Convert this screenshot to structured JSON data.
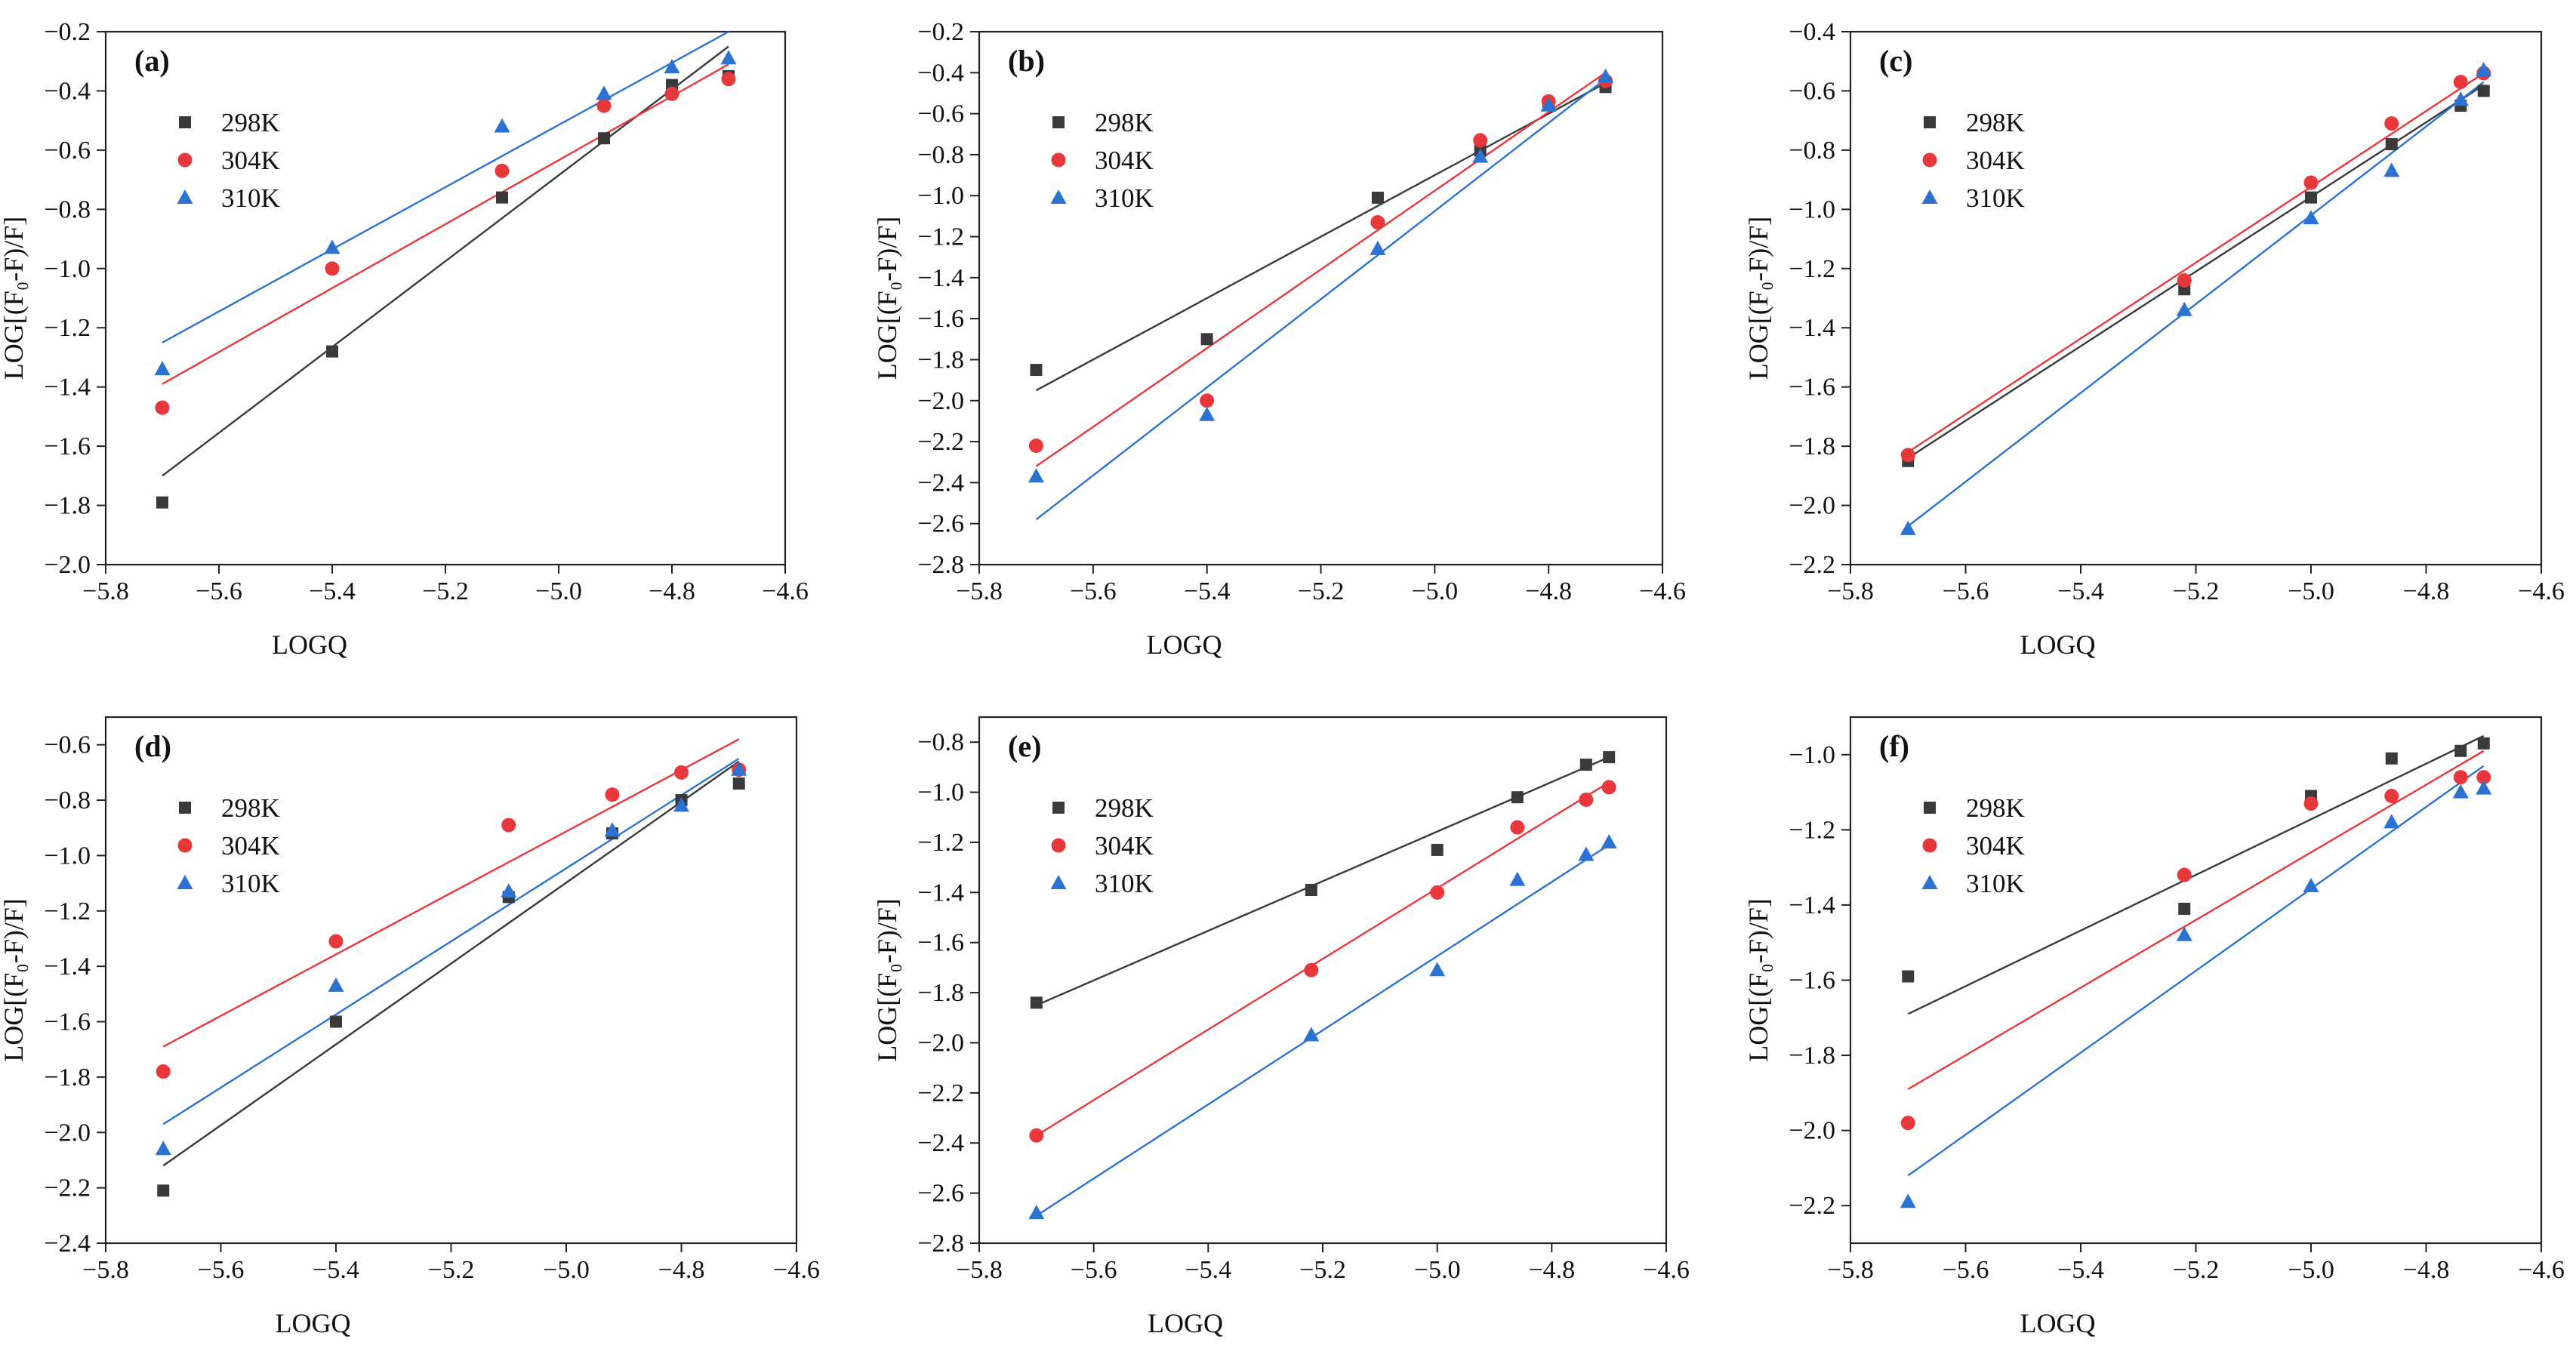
{
  "figure": {
    "series_colors": {
      "298K": "#3a3a3a",
      "304K": "#e8383b",
      "310K": "#2b73d2"
    },
    "series_markers": {
      "298K": "square",
      "304K": "circle",
      "310K": "triangle"
    }
  },
  "chart_data": [
    {
      "panel": "(a)",
      "type": "scatter",
      "xlabel": "LOGQ",
      "ylabel": "LOG[(F₀-F)/F]",
      "xlim": [
        -5.8,
        -4.6
      ],
      "ylim": [
        -2.0,
        -0.2
      ],
      "xticks": [
        -5.8,
        -5.6,
        -5.4,
        -5.2,
        -5.0,
        -4.8,
        -4.6
      ],
      "yticks": [
        -2.0,
        -1.8,
        -1.6,
        -1.4,
        -1.2,
        -1.0,
        -0.8,
        -0.6,
        -0.4,
        -0.2
      ],
      "legend_position": "top-left",
      "series": [
        {
          "name": "298K",
          "x": [
            -5.7,
            -5.4,
            -5.1,
            -4.92,
            -4.8,
            -4.7
          ],
          "y": [
            -1.79,
            -1.28,
            -0.76,
            -0.56,
            -0.38,
            -0.35
          ],
          "fit": [
            [
              -5.7,
              -1.7
            ],
            [
              -4.7,
              -0.25
            ]
          ]
        },
        {
          "name": "304K",
          "x": [
            -5.7,
            -5.4,
            -5.1,
            -4.92,
            -4.8,
            -4.7
          ],
          "y": [
            -1.47,
            -1.0,
            -0.67,
            -0.45,
            -0.41,
            -0.36
          ],
          "fit": [
            [
              -5.7,
              -1.39
            ],
            [
              -4.7,
              -0.31
            ]
          ]
        },
        {
          "name": "310K",
          "x": [
            -5.7,
            -5.4,
            -5.1,
            -4.92,
            -4.8,
            -4.7
          ],
          "y": [
            -1.34,
            -0.93,
            -0.52,
            -0.41,
            -0.32,
            -0.29
          ],
          "fit": [
            [
              -5.7,
              -1.25
            ],
            [
              -4.7,
              -0.2
            ]
          ]
        }
      ]
    },
    {
      "panel": "(b)",
      "type": "scatter",
      "xlabel": "LOGQ",
      "ylabel": "LOG[(F₀-F)/F]",
      "xlim": [
        -5.8,
        -4.6
      ],
      "ylim": [
        -2.8,
        -0.2
      ],
      "xticks": [
        -5.8,
        -5.6,
        -5.4,
        -5.2,
        -5.0,
        -4.8,
        -4.6
      ],
      "yticks": [
        -2.8,
        -2.6,
        -2.4,
        -2.2,
        -2.0,
        -1.8,
        -1.6,
        -1.4,
        -1.2,
        -1.0,
        -0.8,
        -0.6,
        -0.4,
        -0.2
      ],
      "legend_position": "top-left",
      "series": [
        {
          "name": "298K",
          "x": [
            -5.7,
            -5.4,
            -5.1,
            -4.92,
            -4.8,
            -4.7
          ],
          "y": [
            -1.85,
            -1.7,
            -1.01,
            -0.78,
            -0.55,
            -0.47
          ],
          "fit": [
            [
              -5.7,
              -1.95
            ],
            [
              -4.7,
              -0.45
            ]
          ]
        },
        {
          "name": "304K",
          "x": [
            -5.7,
            -5.4,
            -5.1,
            -4.92,
            -4.8,
            -4.7
          ],
          "y": [
            -2.22,
            -2.0,
            -1.13,
            -0.73,
            -0.54,
            -0.44
          ],
          "fit": [
            [
              -5.7,
              -2.32
            ],
            [
              -4.7,
              -0.4
            ]
          ]
        },
        {
          "name": "310K",
          "x": [
            -5.7,
            -5.4,
            -5.1,
            -4.92,
            -4.8,
            -4.7
          ],
          "y": [
            -2.37,
            -2.07,
            -1.26,
            -0.81,
            -0.56,
            -0.42
          ],
          "fit": [
            [
              -5.7,
              -2.58
            ],
            [
              -4.7,
              -0.43
            ]
          ]
        }
      ]
    },
    {
      "panel": "(c)",
      "type": "scatter",
      "xlabel": "LOGQ",
      "ylabel": "LOG[(F₀-F)/F]",
      "xlim": [
        -5.8,
        -4.6
      ],
      "ylim": [
        -2.2,
        -0.4
      ],
      "xticks": [
        -5.8,
        -5.6,
        -5.4,
        -5.2,
        -5.0,
        -4.8,
        -4.6
      ],
      "yticks": [
        -2.2,
        -2.0,
        -1.8,
        -1.6,
        -1.4,
        -1.2,
        -1.0,
        -0.8,
        -0.6,
        -0.4
      ],
      "legend_position": "top-left",
      "series": [
        {
          "name": "298K",
          "x": [
            -5.7,
            -5.22,
            -5.0,
            -4.86,
            -4.74,
            -4.7
          ],
          "y": [
            -1.85,
            -1.27,
            -0.96,
            -0.78,
            -0.65,
            -0.6
          ],
          "fit": [
            [
              -5.7,
              -1.84
            ],
            [
              -4.7,
              -0.58
            ]
          ]
        },
        {
          "name": "304K",
          "x": [
            -5.7,
            -5.22,
            -5.0,
            -4.86,
            -4.74,
            -4.7
          ],
          "y": [
            -1.83,
            -1.24,
            -0.91,
            -0.71,
            -0.57,
            -0.54
          ],
          "fit": [
            [
              -5.7,
              -1.82
            ],
            [
              -4.7,
              -0.54
            ]
          ]
        },
        {
          "name": "310K",
          "x": [
            -5.7,
            -5.22,
            -5.0,
            -4.86,
            -4.74,
            -4.7
          ],
          "y": [
            -2.08,
            -1.34,
            -1.03,
            -0.87,
            -0.63,
            -0.53
          ],
          "fit": [
            [
              -5.7,
              -2.07
            ],
            [
              -4.7,
              -0.57
            ]
          ]
        }
      ]
    },
    {
      "panel": "(d)",
      "type": "scatter",
      "xlabel": "LOGQ",
      "ylabel": "LOG[(F₀-F)/F]",
      "xlim": [
        -5.8,
        -4.6
      ],
      "ylim": [
        -2.4,
        -0.5
      ],
      "xticks": [
        -5.8,
        -5.6,
        -5.4,
        -5.2,
        -5.0,
        -4.8,
        -4.6
      ],
      "yticks": [
        -2.4,
        -2.2,
        -2.0,
        -1.8,
        -1.6,
        -1.4,
        -1.2,
        -1.0,
        -0.8,
        -0.6
      ],
      "legend_position": "top-left",
      "series": [
        {
          "name": "298K",
          "x": [
            -5.7,
            -5.4,
            -5.1,
            -4.92,
            -4.8,
            -4.7
          ],
          "y": [
            -2.21,
            -1.6,
            -1.15,
            -0.92,
            -0.8,
            -0.74
          ],
          "fit": [
            [
              -5.7,
              -2.12
            ],
            [
              -4.7,
              -0.66
            ]
          ]
        },
        {
          "name": "304K",
          "x": [
            -5.7,
            -5.4,
            -5.1,
            -4.92,
            -4.8,
            -4.7
          ],
          "y": [
            -1.78,
            -1.31,
            -0.89,
            -0.78,
            -0.7,
            -0.69
          ],
          "fit": [
            [
              -5.7,
              -1.69
            ],
            [
              -4.7,
              -0.58
            ]
          ]
        },
        {
          "name": "310K",
          "x": [
            -5.7,
            -5.4,
            -5.1,
            -4.92,
            -4.8,
            -4.7
          ],
          "y": [
            -2.06,
            -1.47,
            -1.13,
            -0.91,
            -0.82,
            -0.69
          ],
          "fit": [
            [
              -5.7,
              -1.97
            ],
            [
              -4.7,
              -0.65
            ]
          ]
        }
      ]
    },
    {
      "panel": "(e)",
      "type": "scatter",
      "xlabel": "LOGQ",
      "ylabel": "LOG[(F₀-F)/F]",
      "xlim": [
        -5.8,
        -4.6
      ],
      "ylim": [
        -2.8,
        -0.7
      ],
      "xticks": [
        -5.8,
        -5.6,
        -5.4,
        -5.2,
        -5.0,
        -4.8,
        -4.6
      ],
      "yticks": [
        -2.8,
        -2.6,
        -2.4,
        -2.2,
        -2.0,
        -1.8,
        -1.6,
        -1.4,
        -1.2,
        -1.0,
        -0.8
      ],
      "legend_position": "top-left",
      "series": [
        {
          "name": "298K",
          "x": [
            -5.7,
            -5.22,
            -5.0,
            -4.86,
            -4.74,
            -4.7
          ],
          "y": [
            -1.84,
            -1.39,
            -1.23,
            -1.02,
            -0.89,
            -0.86
          ],
          "fit": [
            [
              -5.7,
              -1.85
            ],
            [
              -4.7,
              -0.86
            ]
          ]
        },
        {
          "name": "304K",
          "x": [
            -5.7,
            -5.22,
            -5.0,
            -4.86,
            -4.74,
            -4.7
          ],
          "y": [
            -2.37,
            -1.71,
            -1.4,
            -1.14,
            -1.03,
            -0.98
          ],
          "fit": [
            [
              -5.7,
              -2.37
            ],
            [
              -4.7,
              -0.96
            ]
          ]
        },
        {
          "name": "310K",
          "x": [
            -5.7,
            -5.22,
            -5.0,
            -4.86,
            -4.74,
            -4.7
          ],
          "y": [
            -2.68,
            -1.97,
            -1.71,
            -1.35,
            -1.25,
            -1.2
          ],
          "fit": [
            [
              -5.7,
              -2.69
            ],
            [
              -4.7,
              -1.21
            ]
          ]
        }
      ]
    },
    {
      "panel": "(f)",
      "type": "scatter",
      "xlabel": "LOGQ",
      "ylabel": "LOG[(F₀-F)/F]",
      "xlim": [
        -5.8,
        -4.6
      ],
      "ylim": [
        -2.3,
        -0.9
      ],
      "xticks": [
        -5.8,
        -5.6,
        -5.4,
        -5.2,
        -5.0,
        -4.8,
        -4.6
      ],
      "yticks": [
        -2.2,
        -2.0,
        -1.8,
        -1.6,
        -1.4,
        -1.2,
        -1.0
      ],
      "legend_position": "top-left",
      "series": [
        {
          "name": "298K",
          "x": [
            -5.7,
            -5.22,
            -5.0,
            -4.86,
            -4.74,
            -4.7
          ],
          "y": [
            -1.59,
            -1.41,
            -1.11,
            -1.01,
            -0.99,
            -0.97
          ],
          "fit": [
            [
              -5.7,
              -1.69
            ],
            [
              -4.7,
              -0.95
            ]
          ]
        },
        {
          "name": "304K",
          "x": [
            -5.7,
            -5.22,
            -5.0,
            -4.86,
            -4.74,
            -4.7
          ],
          "y": [
            -1.98,
            -1.32,
            -1.13,
            -1.11,
            -1.06,
            -1.06
          ],
          "fit": [
            [
              -5.7,
              -1.89
            ],
            [
              -4.7,
              -0.99
            ]
          ]
        },
        {
          "name": "310K",
          "x": [
            -5.7,
            -5.22,
            -5.0,
            -4.86,
            -4.74,
            -4.7
          ],
          "y": [
            -2.19,
            -1.48,
            -1.35,
            -1.18,
            -1.1,
            -1.09
          ],
          "fit": [
            [
              -5.7,
              -2.12
            ],
            [
              -4.7,
              -1.03
            ]
          ]
        }
      ]
    }
  ]
}
